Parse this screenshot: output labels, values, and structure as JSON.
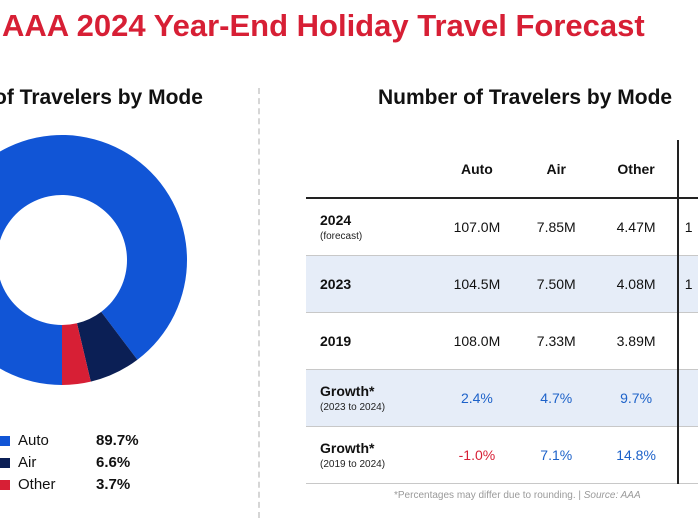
{
  "title": "AAA 2024 Year-End Holiday Travel Forecast",
  "left_title": "of Travelers by Mode",
  "right_title": "Number of Travelers by Mode",
  "colors": {
    "auto": "#1155d6",
    "air": "#0b1f55",
    "other": "#d71f35",
    "shade": "#e6edf8"
  },
  "chart_data": {
    "type": "pie",
    "style": "donut",
    "categories": [
      "Auto",
      "Air",
      "Other"
    ],
    "values": [
      89.7,
      6.6,
      3.7
    ],
    "labels": [
      "89.7%",
      "6.6%",
      "3.7%"
    ]
  },
  "legend": [
    {
      "label": "Auto",
      "value": "89.7%"
    },
    {
      "label": "Air",
      "value": "6.6%"
    },
    {
      "label": "Other",
      "value": "3.7%"
    }
  ],
  "table": {
    "headers": [
      "Auto",
      "Air",
      "Other"
    ],
    "rows": [
      {
        "label": "2024",
        "sub": "(forecast)",
        "values": [
          "107.0M",
          "7.85M",
          "4.47M"
        ],
        "extra": "1"
      },
      {
        "label": "2023",
        "sub": "",
        "values": [
          "104.5M",
          "7.50M",
          "4.08M"
        ],
        "extra": "1"
      },
      {
        "label": "2019",
        "sub": "",
        "values": [
          "108.0M",
          "7.33M",
          "3.89M"
        ],
        "extra": ""
      },
      {
        "label": "Growth*",
        "sub": "(2023 to 2024)",
        "values": [
          "2.4%",
          "4.7%",
          "9.7%"
        ],
        "extra": ""
      },
      {
        "label": "Growth*",
        "sub": "(2019 to 2024)",
        "values": [
          "-1.0%",
          "7.1%",
          "14.8%"
        ],
        "extra": ""
      }
    ]
  },
  "footnote": {
    "text": "*Percentages may differ due to rounding. | ",
    "source": "Source: AAA"
  }
}
